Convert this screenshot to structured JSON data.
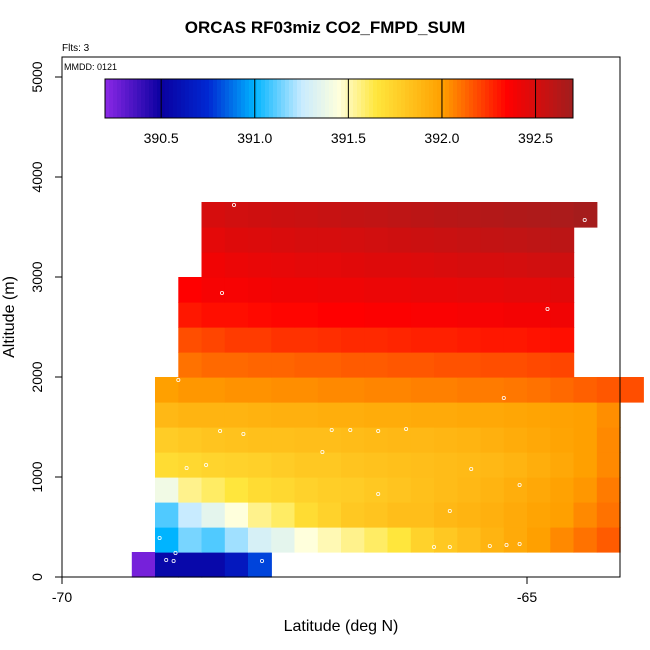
{
  "title": "ORCAS RF03miz CO2_FMPD_SUM",
  "flights_label": "Flts: 3",
  "date_label": "MMDD: 0121",
  "chart_data": {
    "type": "heatmap",
    "title": "ORCAS RF03miz CO2_FMPD_SUM",
    "xlabel": "Latitude (deg N)",
    "ylabel": "Altitude (m)",
    "xlim": [
      -70,
      -64
    ],
    "ylim": [
      0,
      5200
    ],
    "xticks": [
      -70,
      -65
    ],
    "yticks": [
      0,
      1000,
      2000,
      3000,
      4000,
      5000
    ],
    "colorbar": {
      "range": [
        390.2,
        392.7
      ],
      "ticks": [
        390.5,
        391.0,
        391.5,
        392.0,
        392.5
      ],
      "tick_labels": [
        "390.5",
        "391.0",
        "391.5",
        "392.0",
        "392.5"
      ]
    },
    "cell_size": {
      "lat": 0.25,
      "alt": 250
    },
    "rows": [
      {
        "alt": 0,
        "lat0": -69.25,
        "values": [
          390.25,
          390.55,
          390.55,
          390.55,
          390.65,
          390.8
        ]
      },
      {
        "alt": 250,
        "lat0": -69.0,
        "values": [
          391.0,
          391.15,
          391.1,
          391.2,
          391.3,
          391.35,
          391.45,
          391.5,
          391.55,
          391.6,
          391.65,
          391.75,
          391.8,
          391.85,
          391.9,
          391.95,
          392.0,
          392.05,
          392.1,
          392.15
        ]
      },
      {
        "alt": 500,
        "lat0": -69.0,
        "values": [
          391.1,
          391.25,
          391.35,
          391.45,
          391.55,
          391.6,
          391.7,
          391.75,
          391.8,
          391.82,
          391.85,
          391.85,
          391.88,
          391.9,
          391.92,
          391.95,
          391.98,
          392.0,
          392.05,
          392.1
        ]
      },
      {
        "alt": 750,
        "lat0": -69.0,
        "values": [
          391.4,
          391.55,
          391.6,
          391.65,
          391.7,
          391.72,
          391.75,
          391.77,
          391.78,
          391.8,
          391.82,
          391.84,
          391.86,
          391.88,
          391.9,
          391.93,
          391.96,
          391.99,
          392.02,
          392.08
        ]
      },
      {
        "alt": 1000,
        "lat0": -69.0,
        "values": [
          391.7,
          391.72,
          391.74,
          391.75,
          391.76,
          391.78,
          391.8,
          391.8,
          391.82,
          391.83,
          391.84,
          391.85,
          391.86,
          391.87,
          391.88,
          391.9,
          391.93,
          391.96,
          392.0,
          392.05
        ]
      },
      {
        "alt": 1250,
        "lat0": -69.0,
        "values": [
          391.78,
          391.8,
          391.82,
          391.83,
          391.84,
          391.84,
          391.85,
          391.85,
          391.86,
          391.87,
          391.88,
          391.88,
          391.89,
          391.9,
          391.92,
          391.94,
          391.96,
          391.98,
          392.0,
          392.05
        ]
      },
      {
        "alt": 1500,
        "lat0": -69.0,
        "values": [
          391.88,
          391.9,
          391.9,
          391.9,
          391.91,
          391.92,
          391.92,
          391.93,
          391.93,
          391.94,
          391.94,
          391.95,
          391.95,
          391.96,
          391.96,
          391.97,
          391.98,
          391.99,
          392.0,
          392.04
        ]
      },
      {
        "alt": 1750,
        "lat0": -69.0,
        "values": [
          392.0,
          392.02,
          392.02,
          392.03,
          392.03,
          392.04,
          392.04,
          392.05,
          392.05,
          392.06,
          392.06,
          392.07,
          392.07,
          392.08,
          392.08,
          392.09,
          392.1,
          392.12,
          392.14,
          392.16,
          392.18
        ]
      },
      {
        "alt": 2000,
        "lat0": -68.75,
        "values": [
          392.1,
          392.12,
          392.12,
          392.13,
          392.13,
          392.14,
          392.14,
          392.15,
          392.15,
          392.16,
          392.16,
          392.17,
          392.17,
          392.18,
          392.18,
          392.19,
          392.2
        ]
      },
      {
        "alt": 2250,
        "lat0": -68.75,
        "values": [
          392.18,
          392.2,
          392.22,
          392.22,
          392.24,
          392.24,
          392.25,
          392.26,
          392.26,
          392.27,
          392.28,
          392.28,
          392.29,
          392.3,
          392.3,
          392.31,
          392.32
        ]
      },
      {
        "alt": 2500,
        "lat0": -68.75,
        "values": [
          392.3,
          392.32,
          392.32,
          392.33,
          392.34,
          392.34,
          392.35,
          392.35,
          392.36,
          392.36,
          392.37,
          392.37,
          392.38,
          392.38,
          392.39,
          392.39,
          392.4
        ]
      },
      {
        "alt": 2750,
        "lat0": -68.75,
        "values": [
          392.35,
          392.38,
          392.38,
          392.39,
          392.4,
          392.4,
          392.41,
          392.41,
          392.42,
          392.42,
          392.43,
          392.43,
          392.44,
          392.44,
          392.45,
          392.45,
          392.46
        ]
      },
      {
        "alt": 3000,
        "lat0": -68.5,
        "values": [
          392.4,
          392.42,
          392.43,
          392.44,
          392.45,
          392.45,
          392.46,
          392.47,
          392.47,
          392.48,
          392.49,
          392.5,
          392.5,
          392.51,
          392.52,
          392.53
        ]
      },
      {
        "alt": 3250,
        "lat0": -68.5,
        "values": [
          392.45,
          392.47,
          392.48,
          392.49,
          392.5,
          392.5,
          392.51,
          392.52,
          392.53,
          392.54,
          392.55,
          392.56,
          392.57,
          392.58,
          392.59,
          392.6
        ]
      },
      {
        "alt": 3500,
        "lat0": -68.5,
        "values": [
          392.5,
          392.52,
          392.53,
          392.54,
          392.55,
          392.56,
          392.57,
          392.58,
          392.59,
          392.6,
          392.61,
          392.62,
          392.63,
          392.64,
          392.65,
          392.66,
          392.68
        ]
      }
    ],
    "observation_points": [
      [
        -68.88,
        170
      ],
      [
        -68.8,
        160
      ],
      [
        -68.78,
        240
      ],
      [
        -68.95,
        390
      ],
      [
        -67.85,
        160
      ],
      [
        -67.7,
        170
      ],
      [
        -67.4,
        140
      ],
      [
        -66.0,
        300
      ],
      [
        -65.83,
        300
      ],
      [
        -65.4,
        310
      ],
      [
        -65.22,
        320
      ],
      [
        -65.08,
        330
      ],
      [
        -65.83,
        660
      ],
      [
        -66.6,
        830
      ],
      [
        -65.08,
        920
      ],
      [
        -65.6,
        1080
      ],
      [
        -68.45,
        1120
      ],
      [
        -68.66,
        1090
      ],
      [
        -66.6,
        1460
      ],
      [
        -66.3,
        1480
      ],
      [
        -66.9,
        1470
      ],
      [
        -67.1,
        1470
      ],
      [
        -68.05,
        1430
      ],
      [
        -68.3,
        1460
      ],
      [
        -67.2,
        1250
      ],
      [
        -68.15,
        3720
      ],
      [
        -68.28,
        2840
      ],
      [
        -68.75,
        1970
      ],
      [
        -65.25,
        1790
      ],
      [
        -64.78,
        2680
      ],
      [
        -64.38,
        3570
      ]
    ]
  }
}
